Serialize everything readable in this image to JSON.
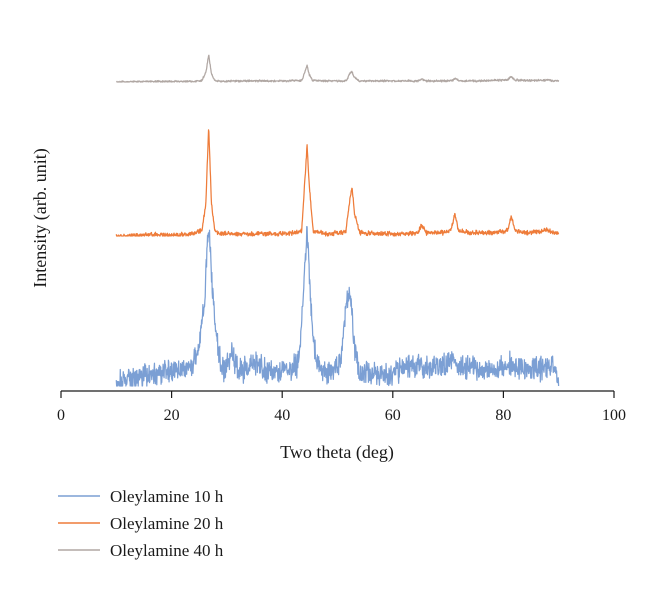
{
  "chart_data": {
    "type": "line",
    "title": "",
    "xlabel": "Two theta (deg)",
    "ylabel": "Intensity (arb. unit)",
    "xlim": [
      0,
      100
    ],
    "xticks": [
      "0",
      "20",
      "40",
      "60",
      "80",
      "100"
    ],
    "grid": false,
    "legend_position": "bottom-left",
    "series": [
      {
        "name": "Oleylamine 10 h",
        "color": "#7b9fd4",
        "noise": 0.09,
        "x": [
          10,
          13,
          16,
          19,
          22,
          24,
          25,
          26,
          26.4,
          26.8,
          27.2,
          27.8,
          28.6,
          29.5,
          30.2,
          30.8,
          31.5,
          32.5,
          34,
          35.5,
          37,
          38.5,
          40,
          41.5,
          42.8,
          43.6,
          44.1,
          44.5,
          45,
          45.6,
          46.5,
          48,
          49.5,
          50.5,
          51,
          51.6,
          52.1,
          52.6,
          53.1,
          53.7,
          54.5,
          56,
          58,
          60,
          62,
          63.5,
          64.5,
          66,
          68,
          70,
          71,
          72,
          74,
          76,
          78,
          80,
          81.5,
          83,
          85,
          87,
          88.5,
          89.5,
          90
        ],
        "y": [
          0.01,
          0.05,
          0.07,
          0.09,
          0.11,
          0.14,
          0.26,
          0.55,
          0.85,
          1.0,
          0.72,
          0.4,
          0.18,
          0.1,
          0.16,
          0.21,
          0.13,
          0.1,
          0.12,
          0.15,
          0.1,
          0.09,
          0.1,
          0.1,
          0.14,
          0.42,
          0.78,
          0.96,
          0.62,
          0.3,
          0.12,
          0.08,
          0.1,
          0.16,
          0.3,
          0.55,
          0.62,
          0.48,
          0.25,
          0.1,
          0.07,
          0.08,
          0.07,
          0.08,
          0.11,
          0.13,
          0.14,
          0.12,
          0.13,
          0.14,
          0.16,
          0.13,
          0.11,
          0.1,
          0.09,
          0.12,
          0.14,
          0.12,
          0.1,
          0.11,
          0.13,
          0.09,
          0.06
        ]
      },
      {
        "name": "Oleylamine 20 h",
        "color": "#ee7c3a",
        "noise": 0.025,
        "x": [
          10,
          15,
          20,
          24,
          25.5,
          26.2,
          26.7,
          27.2,
          27.8,
          29,
          32,
          36,
          40,
          43.5,
          44.1,
          44.5,
          44.9,
          45.6,
          48,
          51.5,
          52.1,
          52.6,
          53.1,
          54,
          58,
          62,
          64.5,
          65.2,
          66,
          69,
          70.6,
          71.2,
          71.9,
          74,
          78,
          80.8,
          81.4,
          82.1,
          84,
          87,
          88,
          89,
          90
        ],
        "y": [
          0.0,
          0.01,
          0.01,
          0.02,
          0.05,
          0.3,
          1.0,
          0.3,
          0.05,
          0.02,
          0.02,
          0.02,
          0.02,
          0.04,
          0.5,
          0.83,
          0.45,
          0.04,
          0.02,
          0.04,
          0.28,
          0.45,
          0.2,
          0.03,
          0.02,
          0.02,
          0.03,
          0.1,
          0.03,
          0.03,
          0.06,
          0.2,
          0.05,
          0.03,
          0.03,
          0.05,
          0.18,
          0.05,
          0.03,
          0.04,
          0.06,
          0.03,
          0.03
        ]
      },
      {
        "name": "Oleylamine 40 h",
        "color": "#b0a7a3",
        "noise": 0.022,
        "x": [
          10,
          15,
          20,
          24,
          25.5,
          26.2,
          26.7,
          27.2,
          27.8,
          29,
          32,
          36,
          40,
          43.6,
          44.1,
          44.5,
          44.9,
          45.5,
          48,
          51.6,
          52.2,
          52.6,
          53.0,
          54,
          58,
          62,
          64.6,
          65.2,
          66,
          69,
          70.8,
          71.3,
          72,
          75,
          78,
          80.8,
          81.4,
          82,
          84,
          87,
          88,
          89,
          90
        ],
        "y": [
          0.0,
          0.01,
          0.01,
          0.01,
          0.03,
          0.18,
          0.52,
          0.16,
          0.03,
          0.01,
          0.02,
          0.02,
          0.02,
          0.03,
          0.2,
          0.31,
          0.14,
          0.03,
          0.02,
          0.02,
          0.16,
          0.2,
          0.09,
          0.02,
          0.02,
          0.02,
          0.02,
          0.06,
          0.02,
          0.02,
          0.03,
          0.07,
          0.02,
          0.02,
          0.03,
          0.04,
          0.1,
          0.04,
          0.03,
          0.03,
          0.04,
          0.02,
          0.02
        ]
      }
    ]
  }
}
